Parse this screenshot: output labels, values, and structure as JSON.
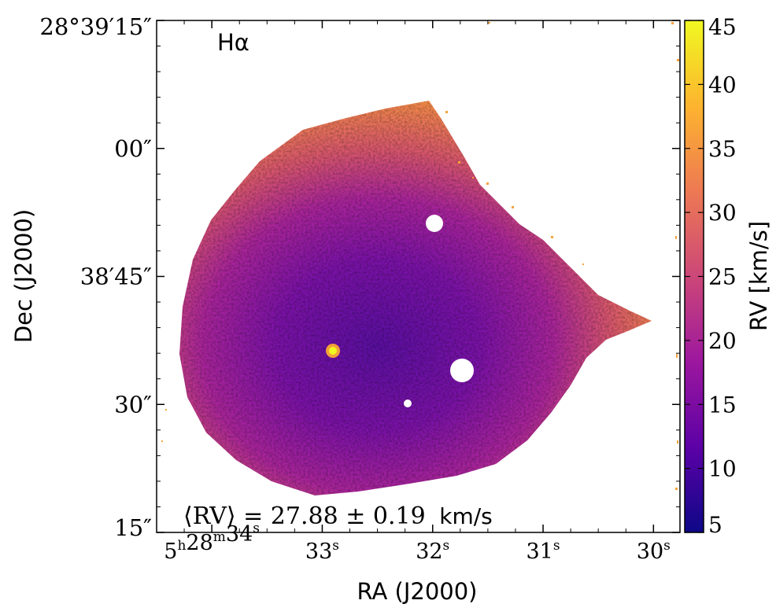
{
  "chart_data": {
    "type": "heatmap",
    "panel_label": "Hα",
    "xlabel": "RA (J2000)",
    "ylabel": "Dec (J2000)",
    "x_ticks": [
      {
        "ra_s": 34.0,
        "label": "5h28m34s"
      },
      {
        "ra_s": 33.0,
        "label": "33s"
      },
      {
        "ra_s": 32.0,
        "label": "32s"
      },
      {
        "ra_s": 31.0,
        "label": "31s"
      },
      {
        "ra_s": 30.0,
        "label": "30s"
      }
    ],
    "y_ticks": [
      {
        "dec_arcsec": 15,
        "label": "15″"
      },
      {
        "dec_arcsec": 30,
        "label": "30″"
      },
      {
        "dec_arcsec": 45,
        "label": "38′45″"
      },
      {
        "dec_arcsec": 60,
        "label": "00″"
      },
      {
        "dec_arcsec": 75,
        "label": "28°39′15″"
      }
    ],
    "xlim_ra_s": [
      34.5,
      29.76
    ],
    "ylim_dec_arcsec": [
      15,
      75
    ],
    "colorbar": {
      "label": "RV [km/s]",
      "min": 5,
      "max": 45,
      "ticks": [
        5,
        10,
        15,
        20,
        25,
        30,
        35,
        40,
        45
      ],
      "colormap": "plasma",
      "colors": [
        "#0d0887",
        "#5c01a6",
        "#9c179e",
        "#cc4778",
        "#ed7953",
        "#fdb42f",
        "#f0f921"
      ]
    },
    "annotation": {
      "expression": "⟨RV⟩ = 27.88 ± 0.19",
      "mean_rv": 27.88,
      "error": 0.19,
      "unit": "km/s"
    }
  }
}
